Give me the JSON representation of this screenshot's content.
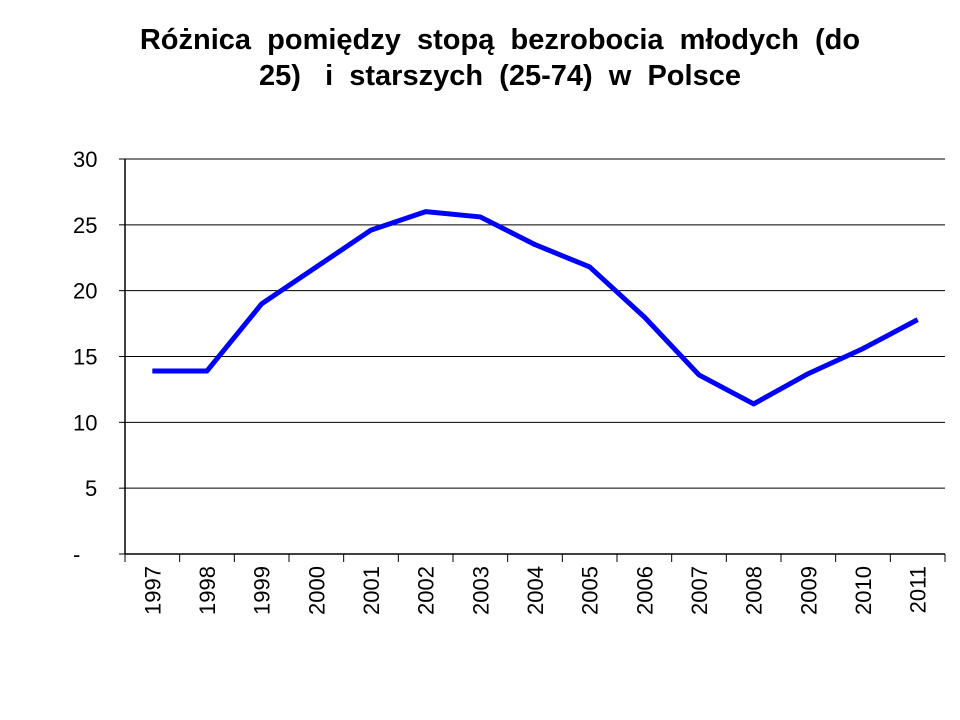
{
  "chart_data": {
    "type": "line",
    "title_lines": [
      "Różnica  pomiędzy  stopą  bezrobocia  młodych  (do",
      "25)   i  starszych  (25-74)  w  Polsce"
    ],
    "categories": [
      "1997",
      "1998",
      "1999",
      "2000",
      "2001",
      "2002",
      "2003",
      "2004",
      "2005",
      "2006",
      "2007",
      "2008",
      "2009",
      "2010",
      "2011"
    ],
    "series": [
      {
        "values": [
          13.9,
          13.9,
          19.0,
          21.8,
          24.6,
          26.0,
          25.6,
          23.5,
          21.8,
          18.0,
          13.6,
          11.4,
          13.7,
          15.6,
          17.8
        ],
        "color": "#0000ff"
      }
    ],
    "yticks": [
      {
        "value": 0,
        "label": "-"
      },
      {
        "value": 5,
        "label": "5"
      },
      {
        "value": 10,
        "label": "10"
      },
      {
        "value": 15,
        "label": "15"
      },
      {
        "value": 20,
        "label": "20"
      },
      {
        "value": 25,
        "label": "25"
      },
      {
        "value": 30,
        "label": "30"
      }
    ],
    "ylim": [
      0,
      30
    ],
    "grid": true,
    "xlabel": "",
    "ylabel": ""
  }
}
